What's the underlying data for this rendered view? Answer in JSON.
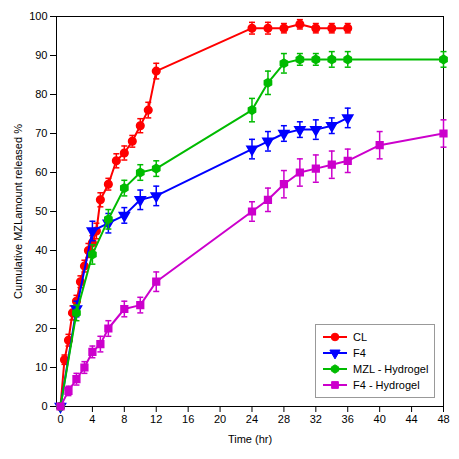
{
  "chart_data": {
    "type": "line",
    "xlabel": "Time (hr)",
    "ylabel": "Cumulative MZLamount released %",
    "xlim": [
      -0.5,
      48
    ],
    "ylim": [
      0,
      100
    ],
    "xticks": [
      0,
      4,
      8,
      12,
      16,
      20,
      24,
      28,
      32,
      36,
      40,
      44,
      48
    ],
    "yticks": [
      0,
      10,
      20,
      30,
      40,
      50,
      60,
      70,
      80,
      90,
      100
    ],
    "legend": "lower right",
    "series": [
      {
        "name": "CL",
        "color": "#ff0000",
        "marker": "circle",
        "x": [
          0,
          0.5,
          1,
          1.5,
          2,
          2.5,
          3,
          3.5,
          4,
          4.5,
          5,
          6,
          7,
          8,
          9,
          10,
          11,
          12,
          24,
          26,
          28,
          30,
          32,
          34,
          36
        ],
        "values": [
          0,
          12,
          17,
          24,
          27,
          32,
          36,
          40,
          42,
          45,
          53,
          57,
          63,
          65,
          68,
          72,
          76,
          86,
          97,
          97,
          97,
          98,
          97,
          97,
          97
        ],
        "errors": [
          0,
          1.2,
          1.5,
          1.8,
          1.5,
          1.5,
          1.5,
          1.8,
          1.8,
          2.0,
          1.8,
          1.5,
          1.8,
          1.8,
          1.5,
          1.8,
          2.0,
          2.0,
          1.5,
          1.5,
          1.2,
          1.2,
          1.2,
          1.2,
          1.2
        ]
      },
      {
        "name": "F4",
        "color": "#0000ff",
        "marker": "triangle_down",
        "x": [
          0,
          2,
          4,
          6,
          8,
          10,
          12,
          24,
          26,
          28,
          30,
          32,
          34,
          36
        ],
        "values": [
          0,
          25,
          45,
          47,
          49,
          53,
          54,
          66,
          68,
          70,
          71,
          71,
          72,
          74
        ],
        "errors": [
          0,
          2.0,
          2.5,
          2.5,
          2.0,
          2.5,
          2.5,
          2.5,
          2.5,
          2.0,
          2.0,
          2.5,
          2.0,
          2.5
        ]
      },
      {
        "name": "MZL - Hydrogel",
        "color": "#00bb00",
        "marker": "hexagon",
        "x": [
          0,
          2,
          4,
          6,
          8,
          10,
          12,
          24,
          26,
          28,
          30,
          32,
          34,
          36,
          48
        ],
        "values": [
          0,
          24,
          39,
          48,
          56,
          60,
          61,
          76,
          83,
          88,
          89,
          89,
          89,
          89,
          89
        ],
        "errors": [
          0,
          2.0,
          2.5,
          2.5,
          2.0,
          2.0,
          2.0,
          3.0,
          3.0,
          2.5,
          1.5,
          1.5,
          2.0,
          2.0,
          2.0
        ]
      },
      {
        "name": "F4 - Hydrogel",
        "color": "#cc00cc",
        "marker": "square",
        "x": [
          0,
          1,
          2,
          3,
          4,
          5,
          6,
          8,
          10,
          12,
          24,
          26,
          28,
          30,
          32,
          34,
          36,
          40,
          48
        ],
        "values": [
          0,
          4,
          7,
          10,
          14,
          16,
          20,
          25,
          26,
          32,
          50,
          53,
          57,
          60,
          61,
          62,
          63,
          67,
          70
        ],
        "errors": [
          0,
          1.2,
          1.5,
          1.5,
          1.5,
          2.0,
          2.0,
          2.0,
          2.0,
          2.5,
          2.5,
          3.0,
          3.5,
          3.5,
          3.5,
          3.5,
          3.0,
          3.5,
          3.5
        ]
      }
    ]
  }
}
